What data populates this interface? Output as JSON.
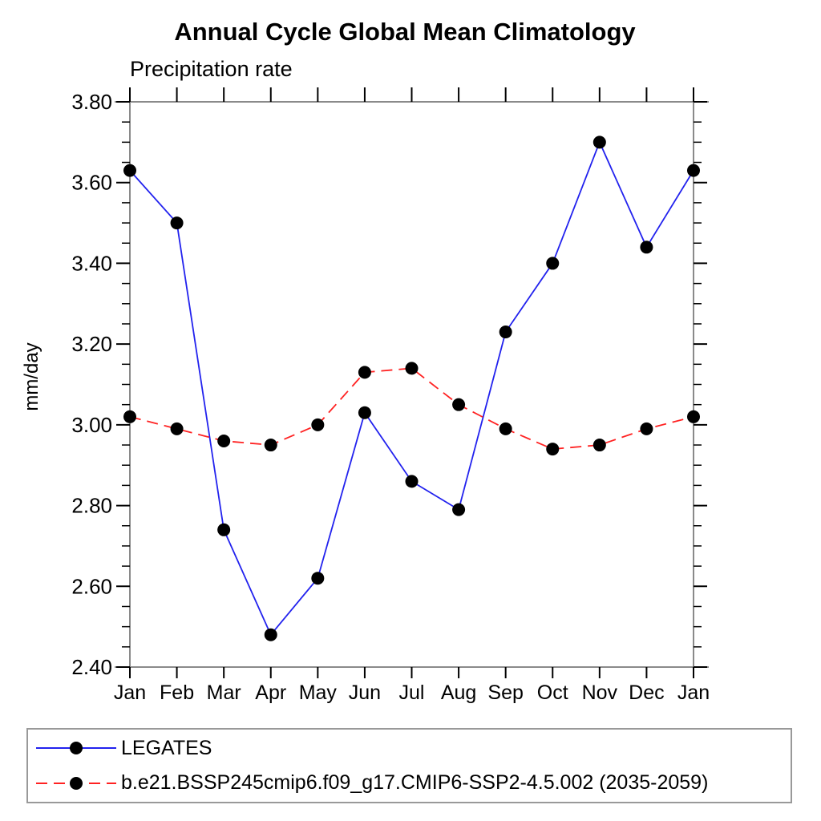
{
  "title": "Annual Cycle Global Mean Climatology",
  "subtitle": "Precipitation rate",
  "y_axis_label": "mm/day",
  "colors": {
    "frame": "#8a8a8a",
    "tick": "#000000",
    "text": "#000000",
    "legates_line": "#2222ee",
    "model_line": "#ff2222",
    "marker": "#000000",
    "legend_border": "#999999"
  },
  "chart_data": {
    "type": "line",
    "title": "Annual Cycle Global Mean Climatology",
    "subtitle": "Precipitation rate",
    "ylabel": "mm/day",
    "xlabel": "",
    "categories": [
      "Jan",
      "Feb",
      "Mar",
      "Apr",
      "May",
      "Jun",
      "Jul",
      "Aug",
      "Sep",
      "Oct",
      "Nov",
      "Dec",
      "Jan"
    ],
    "series": [
      {
        "name": "LEGATES",
        "color": "#2222ee",
        "line_style": "solid",
        "marker": "circle",
        "marker_color": "#000000",
        "values": [
          3.63,
          3.5,
          2.74,
          2.48,
          2.62,
          3.03,
          2.86,
          2.79,
          3.23,
          3.4,
          3.7,
          3.44,
          3.63
        ]
      },
      {
        "name": "b.e21.BSSP245cmip6.f09_g17.CMIP6-SSP2-4.5.002 (2035-2059)",
        "color": "#ff2222",
        "line_style": "dashed",
        "marker": "circle",
        "marker_color": "#000000",
        "values": [
          3.02,
          2.99,
          2.96,
          2.95,
          3.0,
          3.13,
          3.14,
          3.05,
          2.99,
          2.94,
          2.95,
          2.99,
          3.02
        ]
      }
    ],
    "ylim": [
      2.4,
      3.8
    ],
    "ytick_major_step": 0.2,
    "ytick_minor_step": 0.05,
    "ytick_labels": [
      "3.80",
      "3.60",
      "3.40",
      "3.20",
      "3.00",
      "2.80",
      "2.60",
      "2.40"
    ],
    "grid": false,
    "legend_position": "bottom"
  },
  "legend": {
    "entries": [
      {
        "label": "LEGATES"
      },
      {
        "label": "b.e21.BSSP245cmip6.f09_g17.CMIP6-SSP2-4.5.002 (2035-2059)"
      }
    ]
  }
}
